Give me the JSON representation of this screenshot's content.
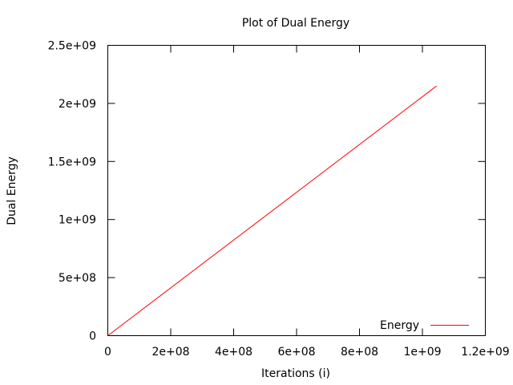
{
  "chart_data": {
    "type": "line",
    "title": "Plot of Dual Energy",
    "xlabel": "Iterations (i)",
    "ylabel": "Dual Energy",
    "xlim": [
      0,
      1200000000
    ],
    "ylim": [
      0,
      2500000000
    ],
    "x_ticks": [
      {
        "value": 0,
        "label": "0"
      },
      {
        "value": 200000000,
        "label": "2e+08"
      },
      {
        "value": 400000000,
        "label": "4e+08"
      },
      {
        "value": 600000000,
        "label": "6e+08"
      },
      {
        "value": 800000000,
        "label": "8e+08"
      },
      {
        "value": 1000000000,
        "label": "1e+09"
      },
      {
        "value": 1200000000,
        "label": "1.2e+09"
      }
    ],
    "y_ticks": [
      {
        "value": 0,
        "label": "0"
      },
      {
        "value": 500000000,
        "label": "5e+08"
      },
      {
        "value": 1000000000,
        "label": "1e+09"
      },
      {
        "value": 1500000000,
        "label": "1.5e+09"
      },
      {
        "value": 2000000000,
        "label": "2e+09"
      },
      {
        "value": 2500000000,
        "label": "2.5e+09"
      }
    ],
    "grid": false,
    "legend_position": "bottom-right",
    "series": [
      {
        "name": "Energy",
        "color": "#ff0000",
        "x": [
          0,
          1045000000
        ],
        "y": [
          0,
          2150000000
        ]
      }
    ]
  }
}
